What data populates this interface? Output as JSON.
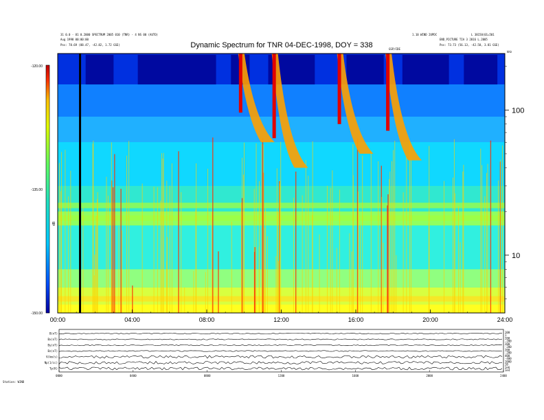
{
  "header": {
    "title": "Dynamic Spectrum for TNR 04-DEC-1998, DOY = 338",
    "left_line1": "31 0.0 - 81 0.2000 SPECTRUM 2005 010 (TNR) - 4 NS 00 (AUTO)",
    "left_line2": "Aug 1998 00:00:00",
    "left_line3": "Pos:   78.69 (88.47, -42.82, 1.72 GSE)",
    "right_line1": "1.10 WIND 2UPDC",
    "right_line2": "L  38150(01=501",
    "right_line3": "END_PICTURE  TIA  3 2016 L.2005",
    "right_line4": "Pos:   73.73 (56.13, -42.58, 3.81 GSE)",
    "mid_label": "GSP/CDE",
    "khz_unit": "kHz"
  },
  "chart_data": {
    "type": "heatmap",
    "title": "Dynamic Spectrum for TNR 04-DEC-1998, DOY = 338",
    "x_tick_labels": [
      "00:00",
      "04:00",
      "08:00",
      "12:00",
      "16:00",
      "20:00",
      "24:00"
    ],
    "x_hours": [
      0,
      4,
      8,
      12,
      16,
      20,
      24
    ],
    "xlim": [
      0,
      24
    ],
    "y_scale": "log",
    "y_tick_labels": [
      "100",
      "10"
    ],
    "y_ticks_khz": [
      100,
      10
    ],
    "ylim_khz": [
      4,
      245
    ],
    "colorbar": {
      "label": "dB",
      "tick_labels": [
        "-120.00",
        "-135.00",
        "-150.00"
      ],
      "range_db": [
        -150,
        -120
      ],
      "colors": [
        "#0000a0",
        "#0050ff",
        "#00c8ff",
        "#20e0e0",
        "#40ff80",
        "#c0ff20",
        "#ffff00",
        "#ffa000",
        "#ff2000",
        "#c00000"
      ]
    },
    "bursts": [
      {
        "t": 9.8,
        "f_top": 245,
        "f_bottom": 60
      },
      {
        "t": 11.6,
        "f_top": 245,
        "f_bottom": 40
      },
      {
        "t": 15.1,
        "f_top": 245,
        "f_bottom": 50
      },
      {
        "t": 17.7,
        "f_top": 245,
        "f_bottom": 45
      }
    ],
    "bands_khz": [
      22,
      18,
      5
    ],
    "data_gap_hours": [
      1.2
    ]
  },
  "panels": {
    "rows": [
      {
        "label": "B(nT)",
        "scale": [
          "100",
          "1"
        ]
      },
      {
        "label": "Bx(nT)",
        "scale": [
          "200",
          "-200"
        ]
      },
      {
        "label": "By(nT)",
        "scale": [
          "200",
          "-200"
        ]
      },
      {
        "label": "Bz(nT)",
        "scale": [
          "200",
          "-200"
        ]
      },
      {
        "label": "V(km/s)",
        "scale": [
          "400",
          "-400"
        ]
      },
      {
        "label": "Np(1/cc)",
        "scale": [
          "1000",
          "10"
        ]
      },
      {
        "label": "Tp(K)",
        "scale": [
          "1e6",
          "1e4"
        ]
      }
    ],
    "x_labels": [
      "0000",
      "0400",
      "0800",
      "1200",
      "1600",
      "2000",
      "2400"
    ],
    "footer": "Station: WIND"
  }
}
